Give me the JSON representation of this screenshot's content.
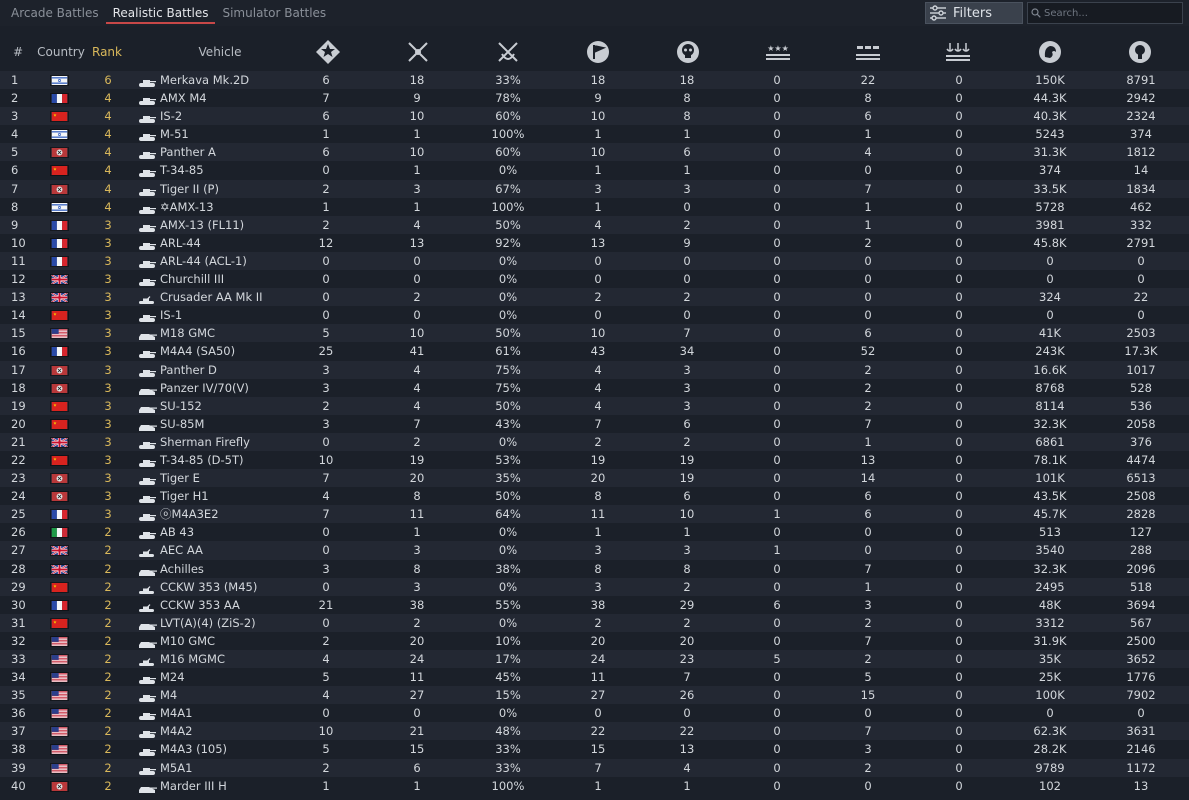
{
  "tabs": [
    {
      "label": "Arcade Battles",
      "active": false
    },
    {
      "label": "Realistic Battles",
      "active": true
    },
    {
      "label": "Simulator Battles",
      "active": false
    }
  ],
  "filters_label": "Filters",
  "search_placeholder": "Search...",
  "columns": {
    "num": "#",
    "country": "Country",
    "rank": "Rank",
    "vehicle": "Vehicle",
    "stat_icons": [
      "battles-icon",
      "respawns-icon",
      "victories-icon",
      "missions-icon",
      "deaths-icon",
      "air-kills-icon",
      "ground-kills-icon",
      "naval-kills-icon",
      "silver-lions-icon",
      "research-points-icon"
    ]
  },
  "rows": [
    {
      "num": "1",
      "country": "israel",
      "rank": "6",
      "name": "Merkava Mk.2D",
      "icon": "tank",
      "s": [
        "6",
        "18",
        "33%",
        "18",
        "18",
        "0",
        "22",
        "0",
        "150K",
        "8791"
      ]
    },
    {
      "num": "2",
      "country": "france",
      "rank": "4",
      "name": "AMX M4",
      "icon": "tank",
      "s": [
        "7",
        "9",
        "78%",
        "9",
        "8",
        "0",
        "8",
        "0",
        "44.3K",
        "2942"
      ]
    },
    {
      "num": "3",
      "country": "china",
      "rank": "4",
      "name": "IS-2",
      "icon": "tank",
      "s": [
        "6",
        "10",
        "60%",
        "10",
        "8",
        "0",
        "6",
        "0",
        "40.3K",
        "2324"
      ]
    },
    {
      "num": "4",
      "country": "israel",
      "rank": "4",
      "name": "M-51",
      "icon": "tank",
      "s": [
        "1",
        "1",
        "100%",
        "1",
        "1",
        "0",
        "1",
        "0",
        "5243",
        "374"
      ]
    },
    {
      "num": "5",
      "country": "germany",
      "rank": "4",
      "name": "Panther A",
      "icon": "tank",
      "s": [
        "6",
        "10",
        "60%",
        "10",
        "6",
        "0",
        "4",
        "0",
        "31.3K",
        "1812"
      ]
    },
    {
      "num": "6",
      "country": "china",
      "rank": "4",
      "name": "T-34-85",
      "icon": "tank",
      "s": [
        "0",
        "1",
        "0%",
        "1",
        "1",
        "0",
        "0",
        "0",
        "374",
        "14"
      ]
    },
    {
      "num": "7",
      "country": "germany",
      "rank": "4",
      "name": "Tiger II (P)",
      "icon": "tank",
      "s": [
        "2",
        "3",
        "67%",
        "3",
        "3",
        "0",
        "7",
        "0",
        "33.5K",
        "1834"
      ]
    },
    {
      "num": "8",
      "country": "israel",
      "rank": "4",
      "name": "✡AMX-13",
      "icon": "tank",
      "s": [
        "1",
        "1",
        "100%",
        "1",
        "0",
        "0",
        "1",
        "0",
        "5728",
        "462"
      ]
    },
    {
      "num": "9",
      "country": "france",
      "rank": "3",
      "name": "AMX-13 (FL11)",
      "icon": "tank",
      "s": [
        "2",
        "4",
        "50%",
        "4",
        "2",
        "0",
        "1",
        "0",
        "3981",
        "332"
      ]
    },
    {
      "num": "10",
      "country": "france",
      "rank": "3",
      "name": "ARL-44",
      "icon": "tank",
      "s": [
        "12",
        "13",
        "92%",
        "13",
        "9",
        "0",
        "2",
        "0",
        "45.8K",
        "2791"
      ]
    },
    {
      "num": "11",
      "country": "france",
      "rank": "3",
      "name": "ARL-44 (ACL-1)",
      "icon": "tank",
      "s": [
        "0",
        "0",
        "0%",
        "0",
        "0",
        "0",
        "0",
        "0",
        "0",
        "0"
      ]
    },
    {
      "num": "12",
      "country": "uk",
      "rank": "3",
      "name": "Churchill III",
      "icon": "tank",
      "s": [
        "0",
        "0",
        "0%",
        "0",
        "0",
        "0",
        "0",
        "0",
        "0",
        "0"
      ]
    },
    {
      "num": "13",
      "country": "uk",
      "rank": "3",
      "name": "Crusader AA Mk II",
      "icon": "spaa",
      "s": [
        "0",
        "2",
        "0%",
        "2",
        "2",
        "0",
        "0",
        "0",
        "324",
        "22"
      ]
    },
    {
      "num": "14",
      "country": "china",
      "rank": "3",
      "name": "IS-1",
      "icon": "tank",
      "s": [
        "0",
        "0",
        "0%",
        "0",
        "0",
        "0",
        "0",
        "0",
        "0",
        "0"
      ]
    },
    {
      "num": "15",
      "country": "usa",
      "rank": "3",
      "name": "M18 GMC",
      "icon": "td",
      "s": [
        "5",
        "10",
        "50%",
        "10",
        "7",
        "0",
        "6",
        "0",
        "41K",
        "2503"
      ]
    },
    {
      "num": "16",
      "country": "france",
      "rank": "3",
      "name": "M4A4 (SA50)",
      "icon": "tank",
      "s": [
        "25",
        "41",
        "61%",
        "43",
        "34",
        "0",
        "52",
        "0",
        "243K",
        "17.3K"
      ]
    },
    {
      "num": "17",
      "country": "germany",
      "rank": "3",
      "name": "Panther D",
      "icon": "tank",
      "s": [
        "3",
        "4",
        "75%",
        "4",
        "3",
        "0",
        "2",
        "0",
        "16.6K",
        "1017"
      ]
    },
    {
      "num": "18",
      "country": "germany",
      "rank": "3",
      "name": "Panzer IV/70(V)",
      "icon": "td",
      "s": [
        "3",
        "4",
        "75%",
        "4",
        "3",
        "0",
        "2",
        "0",
        "8768",
        "528"
      ]
    },
    {
      "num": "19",
      "country": "china",
      "rank": "3",
      "name": "SU-152",
      "icon": "td",
      "s": [
        "2",
        "4",
        "50%",
        "4",
        "3",
        "0",
        "2",
        "0",
        "8114",
        "536"
      ]
    },
    {
      "num": "20",
      "country": "china",
      "rank": "3",
      "name": "SU-85M",
      "icon": "td",
      "s": [
        "3",
        "7",
        "43%",
        "7",
        "6",
        "0",
        "7",
        "0",
        "32.3K",
        "2058"
      ]
    },
    {
      "num": "21",
      "country": "uk",
      "rank": "3",
      "name": "Sherman Firefly",
      "icon": "tank",
      "s": [
        "0",
        "2",
        "0%",
        "2",
        "2",
        "0",
        "1",
        "0",
        "6861",
        "376"
      ]
    },
    {
      "num": "22",
      "country": "china",
      "rank": "3",
      "name": "T-34-85 (D-5T)",
      "icon": "tank",
      "s": [
        "10",
        "19",
        "53%",
        "19",
        "19",
        "0",
        "13",
        "0",
        "78.1K",
        "4474"
      ]
    },
    {
      "num": "23",
      "country": "germany",
      "rank": "3",
      "name": "Tiger E",
      "icon": "tank",
      "s": [
        "7",
        "20",
        "35%",
        "20",
        "19",
        "0",
        "14",
        "0",
        "101K",
        "6513"
      ]
    },
    {
      "num": "24",
      "country": "germany",
      "rank": "3",
      "name": "Tiger H1",
      "icon": "tank",
      "s": [
        "4",
        "8",
        "50%",
        "8",
        "6",
        "0",
        "6",
        "0",
        "43.5K",
        "2508"
      ]
    },
    {
      "num": "25",
      "country": "france",
      "rank": "3",
      "name": "ⓞM4A3E2",
      "icon": "tank",
      "s": [
        "7",
        "11",
        "64%",
        "11",
        "10",
        "1",
        "6",
        "0",
        "45.7K",
        "2828"
      ]
    },
    {
      "num": "26",
      "country": "italy",
      "rank": "2",
      "name": "AB 43",
      "icon": "tank",
      "s": [
        "0",
        "1",
        "0%",
        "1",
        "1",
        "0",
        "0",
        "0",
        "513",
        "127"
      ]
    },
    {
      "num": "27",
      "country": "uk",
      "rank": "2",
      "name": "AEC AA",
      "icon": "spaa",
      "s": [
        "0",
        "3",
        "0%",
        "3",
        "3",
        "1",
        "0",
        "0",
        "3540",
        "288"
      ]
    },
    {
      "num": "28",
      "country": "uk",
      "rank": "2",
      "name": "Achilles",
      "icon": "td",
      "s": [
        "3",
        "8",
        "38%",
        "8",
        "8",
        "0",
        "7",
        "0",
        "32.3K",
        "2096"
      ]
    },
    {
      "num": "29",
      "country": "china",
      "rank": "2",
      "name": "CCKW 353 (M45)",
      "icon": "spaa",
      "s": [
        "0",
        "3",
        "0%",
        "3",
        "2",
        "0",
        "1",
        "0",
        "2495",
        "518"
      ]
    },
    {
      "num": "30",
      "country": "france",
      "rank": "2",
      "name": "CCKW 353 AA",
      "icon": "spaa",
      "s": [
        "21",
        "38",
        "55%",
        "38",
        "29",
        "6",
        "3",
        "0",
        "48K",
        "3694"
      ]
    },
    {
      "num": "31",
      "country": "china",
      "rank": "2",
      "name": "LVT(A)(4) (ZiS-2)",
      "icon": "td",
      "s": [
        "0",
        "2",
        "0%",
        "2",
        "2",
        "0",
        "2",
        "0",
        "3312",
        "567"
      ]
    },
    {
      "num": "32",
      "country": "usa",
      "rank": "2",
      "name": "M10 GMC",
      "icon": "td",
      "s": [
        "2",
        "20",
        "10%",
        "20",
        "20",
        "0",
        "7",
        "0",
        "31.9K",
        "2500"
      ]
    },
    {
      "num": "33",
      "country": "usa",
      "rank": "2",
      "name": "M16 MGMC",
      "icon": "spaa",
      "s": [
        "4",
        "24",
        "17%",
        "24",
        "23",
        "5",
        "2",
        "0",
        "35K",
        "3652"
      ]
    },
    {
      "num": "34",
      "country": "usa",
      "rank": "2",
      "name": "M24",
      "icon": "tank",
      "s": [
        "5",
        "11",
        "45%",
        "11",
        "7",
        "0",
        "5",
        "0",
        "25K",
        "1776"
      ]
    },
    {
      "num": "35",
      "country": "usa",
      "rank": "2",
      "name": "M4",
      "icon": "tank",
      "s": [
        "4",
        "27",
        "15%",
        "27",
        "26",
        "0",
        "15",
        "0",
        "100K",
        "7902"
      ]
    },
    {
      "num": "36",
      "country": "usa",
      "rank": "2",
      "name": "M4A1",
      "icon": "tank",
      "s": [
        "0",
        "0",
        "0%",
        "0",
        "0",
        "0",
        "0",
        "0",
        "0",
        "0"
      ]
    },
    {
      "num": "37",
      "country": "usa",
      "rank": "2",
      "name": "M4A2",
      "icon": "tank",
      "s": [
        "10",
        "21",
        "48%",
        "22",
        "22",
        "0",
        "7",
        "0",
        "62.3K",
        "3631"
      ]
    },
    {
      "num": "38",
      "country": "usa",
      "rank": "2",
      "name": "M4A3 (105)",
      "icon": "tank",
      "s": [
        "5",
        "15",
        "33%",
        "15",
        "13",
        "0",
        "3",
        "0",
        "28.2K",
        "2146"
      ]
    },
    {
      "num": "39",
      "country": "usa",
      "rank": "2",
      "name": "M5A1",
      "icon": "tank",
      "s": [
        "2",
        "6",
        "33%",
        "7",
        "4",
        "0",
        "2",
        "0",
        "9789",
        "1172"
      ]
    },
    {
      "num": "40",
      "country": "germany",
      "rank": "2",
      "name": "Marder III H",
      "icon": "td",
      "s": [
        "1",
        "1",
        "100%",
        "1",
        "1",
        "0",
        "0",
        "0",
        "102",
        "13"
      ]
    }
  ]
}
